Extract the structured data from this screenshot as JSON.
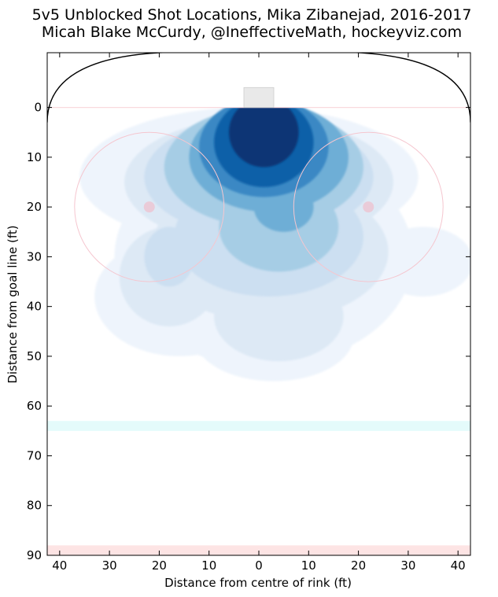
{
  "chart_data": {
    "type": "heatmap",
    "title": "5v5 Unblocked Shot Locations, Mika Zibanejad, 2016-2017",
    "subtitle": "Micah Blake McCurdy, @IneffectiveMath, hockeyviz.com",
    "xlabel": "Distance from centre of rink (ft)",
    "ylabel": "Distance from goal line (ft)",
    "xlim": [
      -42.5,
      42.5
    ],
    "ylim": [
      -11,
      90
    ],
    "x_ticks": [
      -40,
      -30,
      -20,
      -10,
      0,
      10,
      20,
      30,
      40
    ],
    "x_tick_labels": [
      "40",
      "30",
      "20",
      "10",
      "0",
      "10",
      "20",
      "30",
      "40"
    ],
    "y_ticks": [
      0,
      10,
      20,
      30,
      40,
      50,
      60,
      70,
      80,
      90
    ],
    "y_tick_labels": [
      "0",
      "10",
      "20",
      "30",
      "40",
      "50",
      "60",
      "70",
      "80",
      "90"
    ],
    "colormap": "Blues",
    "density_levels": [
      {
        "level": 1,
        "color": "#eef4fc",
        "blobs": [
          {
            "cx": -2,
            "cy": 14,
            "rx": 34,
            "ry": 14
          },
          {
            "cx": 1,
            "cy": 30,
            "rx": 30,
            "ry": 22
          },
          {
            "cx": 3,
            "cy": 46,
            "rx": 16,
            "ry": 9
          },
          {
            "cx": 33,
            "cy": 31,
            "rx": 10,
            "ry": 7
          },
          {
            "cx": -16,
            "cy": 38,
            "rx": 17,
            "ry": 12
          }
        ]
      },
      {
        "level": 2,
        "color": "#dde9f5",
        "blobs": [
          {
            "cx": 0,
            "cy": 15,
            "rx": 27,
            "ry": 13
          },
          {
            "cx": 2,
            "cy": 29,
            "rx": 24,
            "ry": 14
          },
          {
            "cx": 4,
            "cy": 42,
            "rx": 13,
            "ry": 9
          },
          {
            "cx": -18,
            "cy": 34,
            "rx": 10,
            "ry": 10
          }
        ]
      },
      {
        "level": 3,
        "color": "#ccdff1",
        "blobs": [
          {
            "cx": 0,
            "cy": 14,
            "rx": 23,
            "ry": 12
          },
          {
            "cx": 2,
            "cy": 26,
            "rx": 19,
            "ry": 12
          },
          {
            "cx": -18,
            "cy": 30,
            "rx": 5,
            "ry": 6
          }
        ]
      },
      {
        "level": 4,
        "color": "#a6cde5",
        "blobs": [
          {
            "cx": 1,
            "cy": 12,
            "rx": 20,
            "ry": 12
          },
          {
            "cx": 4,
            "cy": 24,
            "rx": 12,
            "ry": 9
          }
        ]
      },
      {
        "level": 5,
        "color": "#6eaed6",
        "blobs": [
          {
            "cx": 2,
            "cy": 10,
            "rx": 16,
            "ry": 11
          },
          {
            "cx": 5,
            "cy": 20,
            "rx": 6,
            "ry": 5
          }
        ]
      },
      {
        "level": 6,
        "color": "#3b88c4",
        "blobs": [
          {
            "cx": 1,
            "cy": 8,
            "rx": 13,
            "ry": 10
          }
        ]
      },
      {
        "level": 7,
        "color": "#1160a8",
        "blobs": [
          {
            "cx": 1,
            "cy": 7,
            "rx": 10,
            "ry": 9
          }
        ]
      },
      {
        "level": 8,
        "color": "#083674",
        "blobs": [
          {
            "cx": 1,
            "cy": 5,
            "rx": 7,
            "ry": 7
          }
        ]
      }
    ],
    "rink": {
      "goal_line_y": 0,
      "faceoff_circles": [
        {
          "x": -22,
          "y": 20,
          "r": 15
        },
        {
          "x": 22,
          "y": 20,
          "r": 15
        }
      ],
      "faceoff_dots": [
        {
          "x": -22,
          "y": 20
        },
        {
          "x": 22,
          "y": 20
        }
      ],
      "crease": {
        "x0": -3,
        "x1": 3,
        "y0": -4,
        "y1": 0
      },
      "blue_line": {
        "y0": 63,
        "y1": 65
      },
      "centre_line": {
        "y0": 88,
        "y1": 90
      },
      "corner_radius": 28,
      "colors": {
        "goal_line": "#f9d9dd",
        "circles": "#f5c6cf",
        "dots": "#f4b8c4",
        "crease": "#e5e5e5",
        "blue_line": "#e4fbfb",
        "centre_line": "#fde4e4",
        "boards": "#000000"
      }
    }
  }
}
